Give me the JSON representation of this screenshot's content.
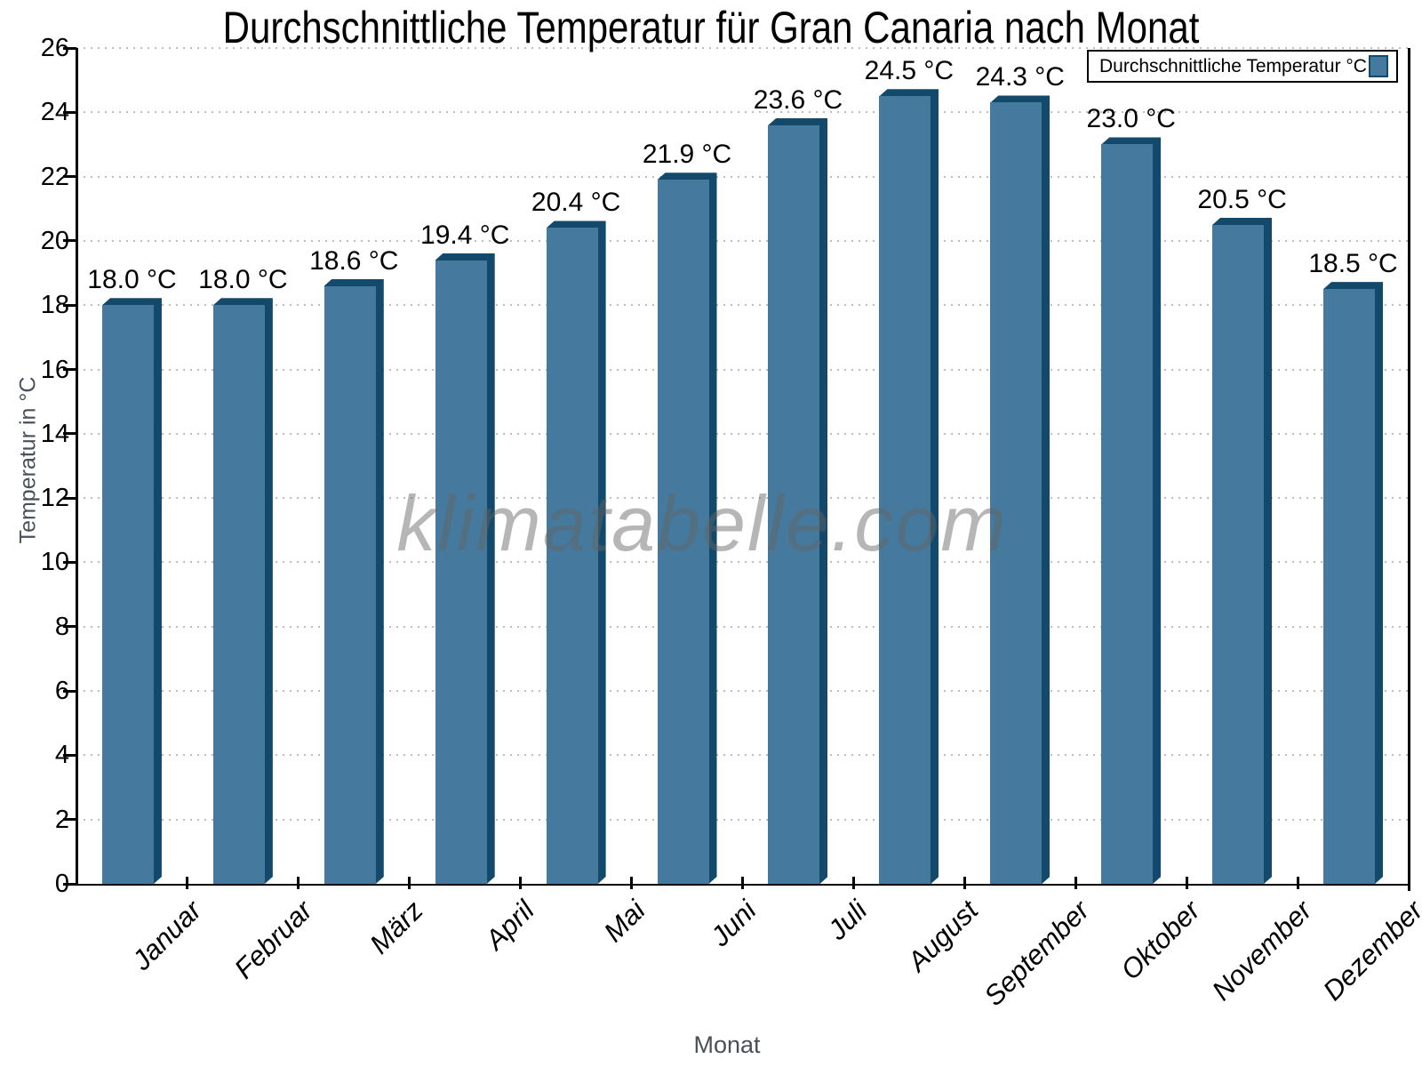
{
  "title": "Durchschnittliche Temperatur für Gran Canaria nach Monat",
  "watermark": "klimatabelle.com",
  "legend": {
    "label": "Durchschnittliche Temperatur °C",
    "position": "top-right"
  },
  "chart_data": {
    "type": "bar",
    "title": "Durchschnittliche Temperatur für Gran Canaria nach Monat",
    "xlabel": "Monat",
    "ylabel": "Temperatur in °C",
    "categories": [
      "Januar",
      "Februar",
      "März",
      "April",
      "Mai",
      "Juni",
      "Juli",
      "August",
      "September",
      "Oktober",
      "November",
      "Dezember"
    ],
    "series": [
      {
        "name": "Durchschnittliche Temperatur °C",
        "values": [
          18.0,
          18.0,
          18.6,
          19.4,
          20.4,
          21.9,
          23.6,
          24.5,
          24.3,
          23.0,
          20.5,
          18.5
        ]
      }
    ],
    "value_labels": [
      "18.0 °C",
      "18.0 °C",
      "18.6 °C",
      "19.4 °C",
      "20.4 °C",
      "21.9 °C",
      "23.6 °C",
      "24.5 °C",
      "24.3 °C",
      "23.0 °C",
      "20.5 °C",
      "18.5 °C"
    ],
    "ylim": [
      0,
      26
    ],
    "ytick_step": 2,
    "ytick_labels": [
      "0",
      "2",
      "4",
      "6",
      "8",
      "10",
      "12",
      "14",
      "16",
      "18",
      "20",
      "22",
      "24",
      "26"
    ],
    "grid": "horizontal-dotted",
    "legend_position": "top-right",
    "colors": {
      "bar_face": "#45799E",
      "bar_shade": "#134A6B",
      "gridline": "#bdbdbd",
      "axis": "#000000",
      "axis_title_text": "#4a505a",
      "watermark": "#b9b9b9"
    }
  }
}
